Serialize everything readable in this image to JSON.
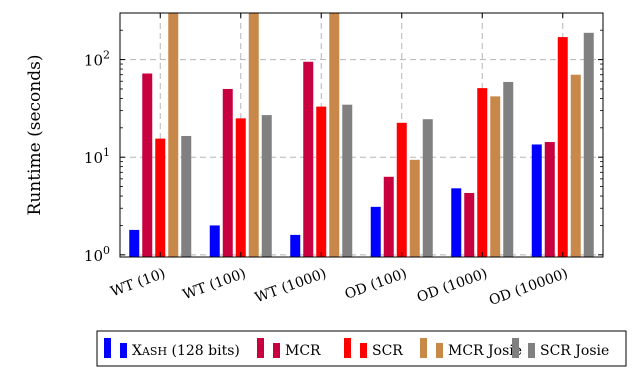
{
  "chart_data": {
    "type": "bar",
    "yscale": "log",
    "ylim": [
      0.95,
      300
    ],
    "ylabel": "Runtime (seconds)",
    "xlabel": "",
    "title": "",
    "y_ticks": [
      {
        "value": 1,
        "base": "10",
        "exp": "0"
      },
      {
        "value": 10,
        "base": "10",
        "exp": "1"
      },
      {
        "value": 100,
        "base": "10",
        "exp": "2"
      }
    ],
    "grid": true,
    "legend_position": "bottom",
    "categories": [
      "WT (10)",
      "WT (100)",
      "WT (1000)",
      "OD (100)",
      "OD (1000)",
      "OD (10000)"
    ],
    "series": [
      {
        "name": "Xash (128 bits)",
        "legend_main": "X",
        "legend_smallcaps": "ASH",
        "legend_rest": " (128 bits)",
        "color": "#0000ff",
        "values": [
          1.8,
          2.0,
          1.6,
          3.1,
          4.8,
          13.5
        ]
      },
      {
        "name": "MCR",
        "color": "#c8003f",
        "values": [
          72,
          50,
          95,
          6.3,
          4.3,
          14.3
        ]
      },
      {
        "name": "SCR",
        "color": "#ff0000",
        "values": [
          15.5,
          25,
          33,
          22.5,
          51,
          170
        ]
      },
      {
        "name": "MCR Josie",
        "color": "#c8884a",
        "values": [
          300,
          300,
          300,
          9.4,
          42,
          70
        ]
      },
      {
        "name": "SCR Josie",
        "color": "#808080",
        "values": [
          16.5,
          27,
          34.5,
          24.5,
          59,
          188
        ]
      }
    ]
  }
}
